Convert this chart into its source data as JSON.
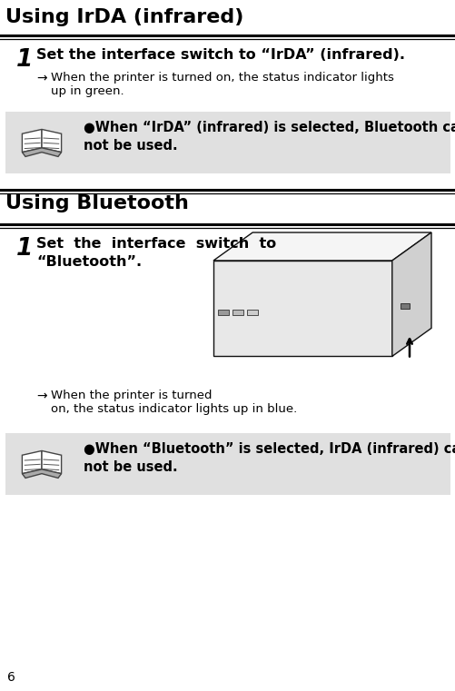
{
  "bg_color": "#ffffff",
  "section1_title": "Using IrDA (infrared)",
  "section2_title": "Using Bluetooth",
  "step1_irda_num": "1",
  "step1_irda_text": "Set the interface switch to “IrDA” (infrared).",
  "step1_irda_sub": "When the printer is turned on, the status indicator lights\nup in green.",
  "note1_text": "When “IrDA” (infrared) is selected, Bluetooth can-\nnot be used.",
  "step1_bt_num": "1",
  "step1_bt_text_l1": "Set  the  interface  switch  to",
  "step1_bt_text_l2": "“Bluetooth”.",
  "step1_bt_sub": "When the printer is turned\non, the status indicator lights up in blue.",
  "note2_text": "When “Bluetooth” is selected, IrDA (infrared) can-\nnot be used.",
  "page_num": "6",
  "note_bg": "#e0e0e0",
  "body_text_color": "#000000"
}
